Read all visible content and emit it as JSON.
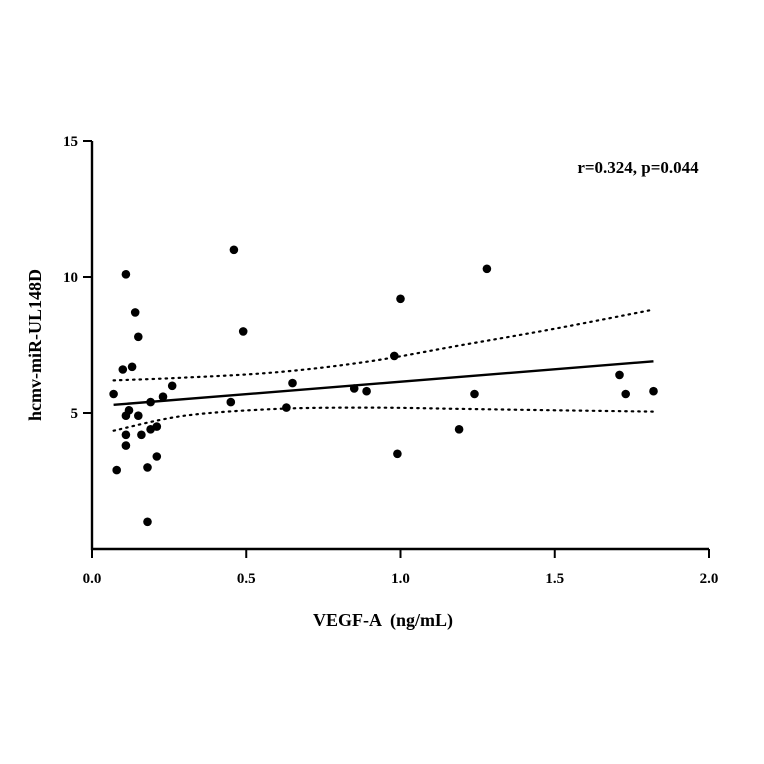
{
  "chart_data": {
    "type": "scatter",
    "title": "",
    "xlabel": "VEGF-A  (ng/mL)",
    "ylabel": "hcmv-miR-UL148D",
    "xlim": [
      0.0,
      2.0
    ],
    "ylim": [
      0,
      15
    ],
    "x_ticks": [
      0.0,
      0.5,
      1.0,
      1.5,
      2.0
    ],
    "x_tick_labels": [
      "0.0",
      "0.5",
      "1.0",
      "1.5",
      "2.0"
    ],
    "y_ticks": [
      5,
      10,
      15
    ],
    "y_tick_labels": [
      "5",
      "10",
      "15"
    ],
    "annotation": "r=0.324, p=0.044",
    "grid": false,
    "series": [
      {
        "points": [
          {
            "x": 0.07,
            "y": 5.7
          },
          {
            "x": 0.08,
            "y": 2.9
          },
          {
            "x": 0.1,
            "y": 6.6
          },
          {
            "x": 0.11,
            "y": 10.1
          },
          {
            "x": 0.11,
            "y": 4.9
          },
          {
            "x": 0.11,
            "y": 4.2
          },
          {
            "x": 0.11,
            "y": 3.8
          },
          {
            "x": 0.12,
            "y": 5.1
          },
          {
            "x": 0.13,
            "y": 6.7
          },
          {
            "x": 0.14,
            "y": 8.7
          },
          {
            "x": 0.15,
            "y": 7.8
          },
          {
            "x": 0.15,
            "y": 4.9
          },
          {
            "x": 0.16,
            "y": 4.2
          },
          {
            "x": 0.18,
            "y": 3.0
          },
          {
            "x": 0.18,
            "y": 1.0
          },
          {
            "x": 0.19,
            "y": 5.4
          },
          {
            "x": 0.19,
            "y": 4.4
          },
          {
            "x": 0.21,
            "y": 4.5
          },
          {
            "x": 0.21,
            "y": 3.4
          },
          {
            "x": 0.23,
            "y": 5.6
          },
          {
            "x": 0.26,
            "y": 6.0
          },
          {
            "x": 0.45,
            "y": 5.4
          },
          {
            "x": 0.46,
            "y": 11.0
          },
          {
            "x": 0.49,
            "y": 8.0
          },
          {
            "x": 0.63,
            "y": 5.2
          },
          {
            "x": 0.65,
            "y": 6.1
          },
          {
            "x": 0.85,
            "y": 5.9
          },
          {
            "x": 0.89,
            "y": 5.8
          },
          {
            "x": 0.98,
            "y": 7.1
          },
          {
            "x": 0.99,
            "y": 3.5
          },
          {
            "x": 1.0,
            "y": 9.2
          },
          {
            "x": 1.19,
            "y": 4.4
          },
          {
            "x": 1.24,
            "y": 5.7
          },
          {
            "x": 1.28,
            "y": 10.3
          },
          {
            "x": 1.71,
            "y": 6.4
          },
          {
            "x": 1.73,
            "y": 5.7
          },
          {
            "x": 1.82,
            "y": 5.8
          }
        ]
      }
    ],
    "regression_line": {
      "x": [
        0.07,
        1.82
      ],
      "y": [
        5.3,
        6.9
      ]
    },
    "confidence_band": {
      "upper": [
        {
          "x": 0.07,
          "y": 6.2
        },
        {
          "x": 0.3,
          "y": 6.3
        },
        {
          "x": 0.6,
          "y": 6.5
        },
        {
          "x": 0.9,
          "y": 6.9
        },
        {
          "x": 1.2,
          "y": 7.5
        },
        {
          "x": 1.5,
          "y": 8.1
        },
        {
          "x": 1.82,
          "y": 8.8
        }
      ],
      "lower": [
        {
          "x": 0.07,
          "y": 4.35
        },
        {
          "x": 0.3,
          "y": 4.9
        },
        {
          "x": 0.6,
          "y": 5.15
        },
        {
          "x": 0.9,
          "y": 5.2
        },
        {
          "x": 1.2,
          "y": 5.15
        },
        {
          "x": 1.5,
          "y": 5.1
        },
        {
          "x": 1.82,
          "y": 5.05
        }
      ]
    }
  }
}
